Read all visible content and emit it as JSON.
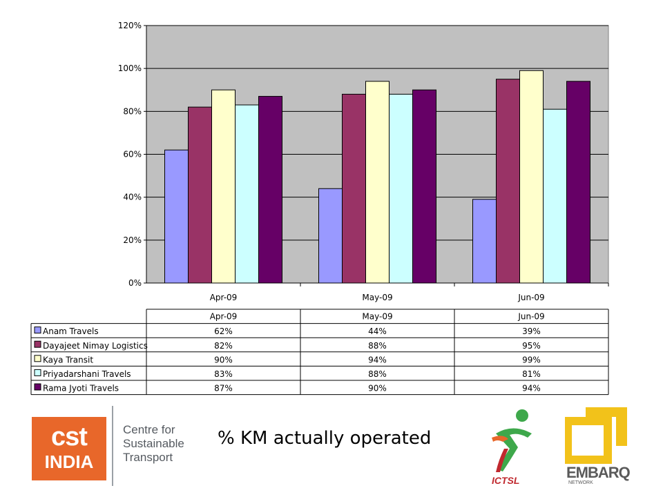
{
  "chart_data": {
    "type": "bar",
    "categories": [
      "Apr-09",
      "May-09",
      "Jun-09"
    ],
    "series": [
      {
        "name": "Anam Travels",
        "values": [
          62,
          44,
          39
        ],
        "labels": [
          "62%",
          "44%",
          "39%"
        ],
        "color": "#9999ff"
      },
      {
        "name": "Dayajeet Nimay Logistics",
        "values": [
          82,
          88,
          95
        ],
        "labels": [
          "82%",
          "88%",
          "95%"
        ],
        "color": "#993366"
      },
      {
        "name": "Kaya Transit",
        "values": [
          90,
          94,
          99
        ],
        "labels": [
          "90%",
          "94%",
          "99%"
        ],
        "color": "#ffffcc"
      },
      {
        "name": "Priyadarshani Travels",
        "values": [
          83,
          88,
          81
        ],
        "labels": [
          "83%",
          "88%",
          "81%"
        ],
        "color": "#ccffff"
      },
      {
        "name": "Rama Jyoti Travels",
        "values": [
          87,
          90,
          94
        ],
        "labels": [
          "87%",
          "90%",
          "94%"
        ],
        "color": "#660066"
      }
    ],
    "yticks": [
      "0%",
      "20%",
      "40%",
      "60%",
      "80%",
      "100%",
      "120%"
    ],
    "ylim": [
      0,
      120
    ],
    "grid": true,
    "legend": "data table below chart",
    "plot_background": "#c0c0c0"
  },
  "caption": "% KM actually operated",
  "logos": {
    "cst": {
      "line1": "cst",
      "line2": "INDIA",
      "text_lines": [
        "Centre for",
        "Sustainable",
        "Transport"
      ]
    },
    "icts": {
      "text": "ICTSL"
    },
    "embarq": {
      "text": "EMBARQ",
      "sub": "NETWORK"
    }
  }
}
